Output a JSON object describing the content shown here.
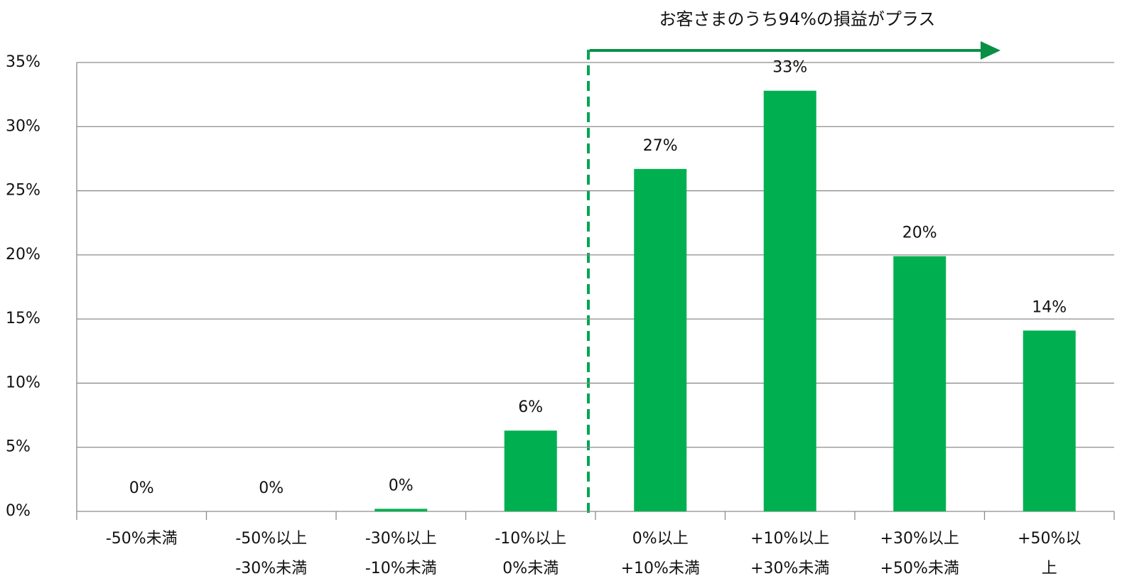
{
  "chart_data": {
    "type": "bar",
    "annotation": "お客さまのうち94%の損益がプラス",
    "categories": [
      "-50%未満",
      "-50%以上\n-30%未満",
      "-30%以上\n-10%未満",
      "-10%以上\n0%未満",
      "0%以上\n+10%未満",
      "+10%以上\n+30%未満",
      "+30%以上\n+50%未満",
      "+50%以上"
    ],
    "values": [
      0,
      0,
      0.2,
      6.3,
      26.7,
      32.8,
      19.9,
      14.1
    ],
    "value_labels": [
      "0%",
      "0%",
      "0%",
      "6%",
      "27%",
      "33%",
      "20%",
      "14%"
    ],
    "color": "#00b050",
    "ylim": [
      0,
      35
    ],
    "yticks": [
      {
        "value": 0,
        "label": "0%"
      },
      {
        "value": 5,
        "label": "5%"
      },
      {
        "value": 10,
        "label": "10%"
      },
      {
        "value": 15,
        "label": "15%"
      },
      {
        "value": 20,
        "label": "20%"
      },
      {
        "value": 25,
        "label": "25%"
      },
      {
        "value": 30,
        "label": "30%"
      },
      {
        "value": 35,
        "label": "35%"
      }
    ],
    "grid": true
  }
}
